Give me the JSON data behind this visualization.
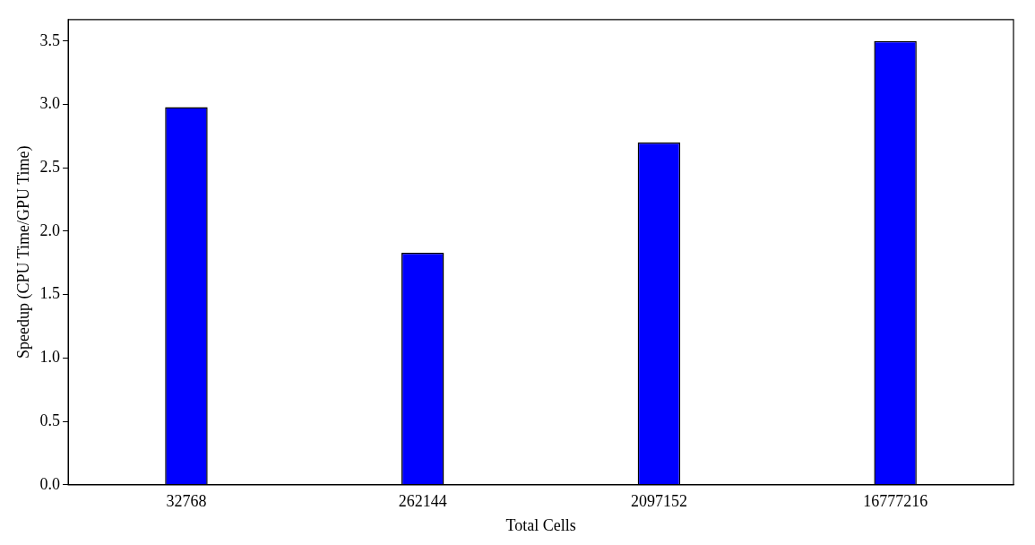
{
  "chart_data": {
    "type": "bar",
    "xlabel": "Total Cells",
    "ylabel": "Speedup (CPU Time/GPU Time)",
    "categories": [
      "32768",
      "262144",
      "2097152",
      "16777216"
    ],
    "values": [
      2.98,
      1.83,
      2.7,
      3.5
    ],
    "color": "#0000ff",
    "ylim": [
      0,
      3.67
    ],
    "yticks": [
      {
        "value": 0,
        "label": "0.0"
      },
      {
        "value": 0.5,
        "label": "0.5"
      },
      {
        "value": 1,
        "label": "1.0"
      },
      {
        "value": 1.5,
        "label": "1.5"
      },
      {
        "value": 2,
        "label": "2.0"
      },
      {
        "value": 2.5,
        "label": "2.5"
      },
      {
        "value": 3,
        "label": "3.0"
      },
      {
        "value": 3.5,
        "label": "3.5"
      }
    ],
    "grid": false,
    "legend": false
  }
}
